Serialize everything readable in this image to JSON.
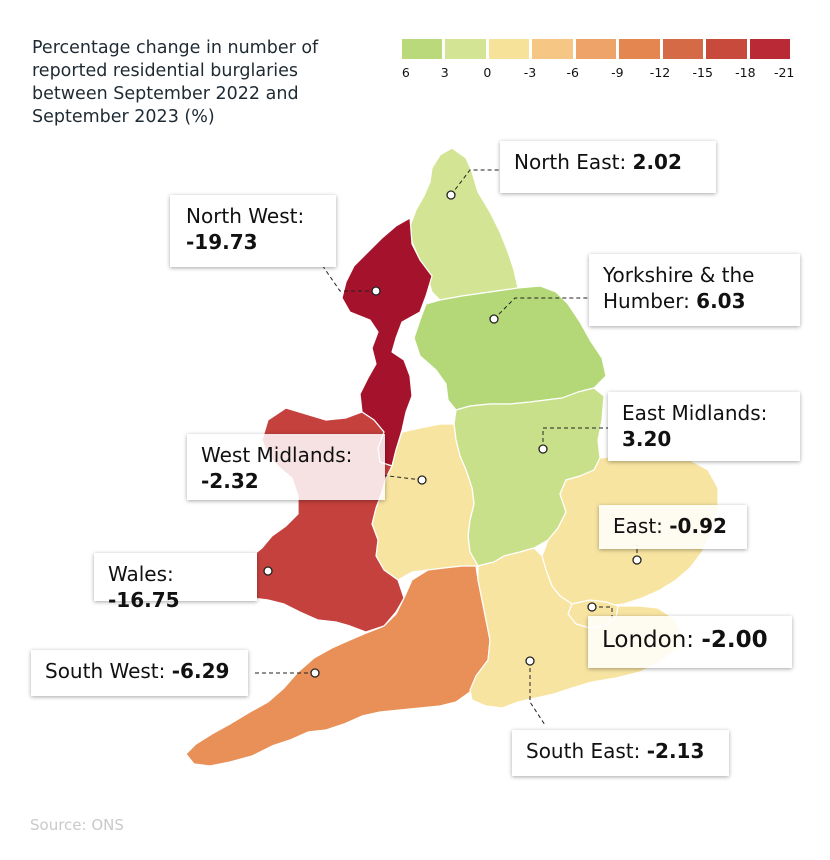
{
  "title": "Percentage change in number of reported residential burglaries between September 2022 and September 2023 (%)",
  "legend": {
    "ticks": [
      "6",
      "3",
      "0",
      "-3",
      "-6",
      "-9",
      "-12",
      "-15",
      "-18",
      "-21"
    ],
    "colors": [
      "#b9d97a",
      "#d3e594",
      "#f7e29a",
      "#f6c784",
      "#eea468",
      "#e4864f",
      "#d56a47",
      "#c84a3d",
      "#b92a36",
      "#a5152b"
    ]
  },
  "regions": [
    {
      "name": "North East",
      "label": "North East: ",
      "value": "2.02",
      "color": "#d3e594"
    },
    {
      "name": "North West",
      "label": "North West: ",
      "value": "-19.73",
      "color": "#a5122b"
    },
    {
      "name": "Yorkshire & the Humber",
      "label": "Yorkshire & the Humber: ",
      "value": "6.03",
      "color": "#b4d878"
    },
    {
      "name": "East Midlands",
      "label": "East Midlands: ",
      "value": "3.20",
      "color": "#c9e08a"
    },
    {
      "name": "West Midlands",
      "label": "West Midlands: ",
      "value": "-2.32",
      "color": "#f8e4a1"
    },
    {
      "name": "East",
      "label": "East: ",
      "value": "-0.92",
      "color": "#f8e4a1"
    },
    {
      "name": "Wales",
      "label": "Wales: ",
      "value": "-16.75",
      "color": "#c4413d"
    },
    {
      "name": "London",
      "label": "London: ",
      "value": "-2.00",
      "color": "#f8e4a1"
    },
    {
      "name": "South West",
      "label": "South West: ",
      "value": "-6.29",
      "color": "#e99058"
    },
    {
      "name": "South East",
      "label": "South East: ",
      "value": "-2.13",
      "color": "#f8e4a1"
    }
  ],
  "source": "Source: ONS"
}
